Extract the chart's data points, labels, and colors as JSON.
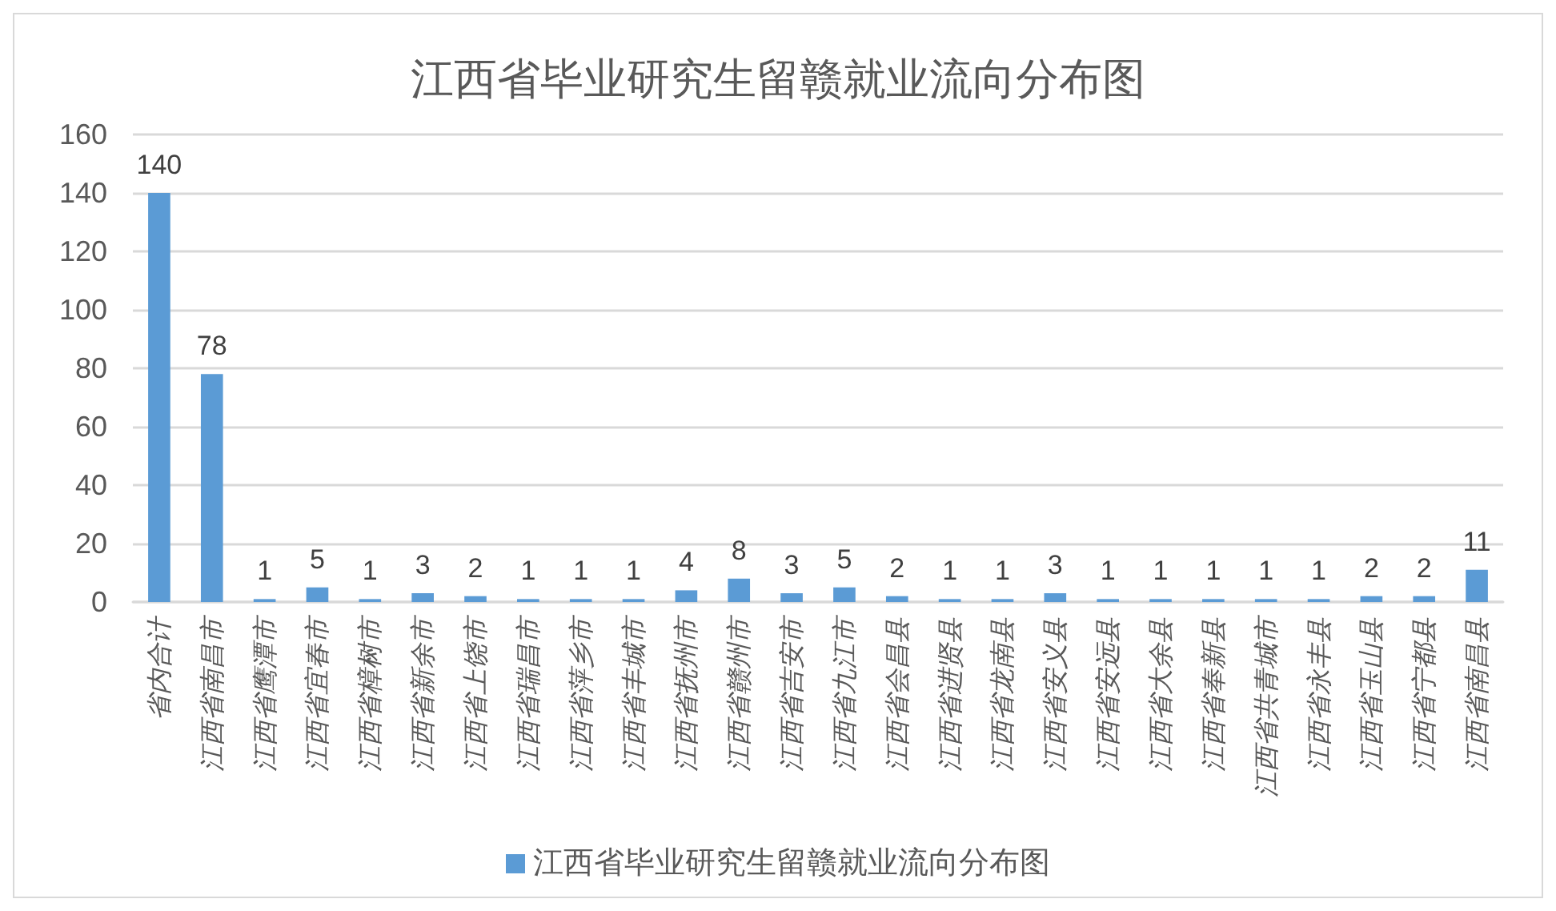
{
  "chart_data": {
    "type": "bar",
    "title": "江西省毕业研究生留赣就业流向分布图",
    "categories": [
      "省内合计",
      "江西省南昌市",
      "江西省鹰潭市",
      "江西省宜春市",
      "江西省樟树市",
      "江西省新余市",
      "江西省上饶市",
      "江西省瑞昌市",
      "江西省萍乡市",
      "江西省丰城市",
      "江西省抚州市",
      "江西省赣州市",
      "江西省吉安市",
      "江西省九江市",
      "江西省会昌县",
      "江西省进贤县",
      "江西省龙南县",
      "江西省安义县",
      "江西省安远县",
      "江西省大余县",
      "江西省奉新县",
      "江西省共青城市",
      "江西省永丰县",
      "江西省玉山县",
      "江西省宁都县",
      "江西省南昌县"
    ],
    "series": [
      {
        "name": "江西省毕业研究生留赣就业流向分布图",
        "color": "#5b9bd5",
        "values": [
          140,
          78,
          1,
          5,
          1,
          3,
          2,
          1,
          1,
          1,
          4,
          8,
          3,
          5,
          2,
          1,
          1,
          3,
          1,
          1,
          1,
          1,
          1,
          2,
          2,
          11
        ]
      }
    ],
    "ylim": [
      0,
      160
    ],
    "yticks": [
      0,
      20,
      40,
      60,
      80,
      100,
      120,
      140,
      160
    ],
    "grid": "y",
    "legend": "bottom",
    "data_labels": true
  }
}
